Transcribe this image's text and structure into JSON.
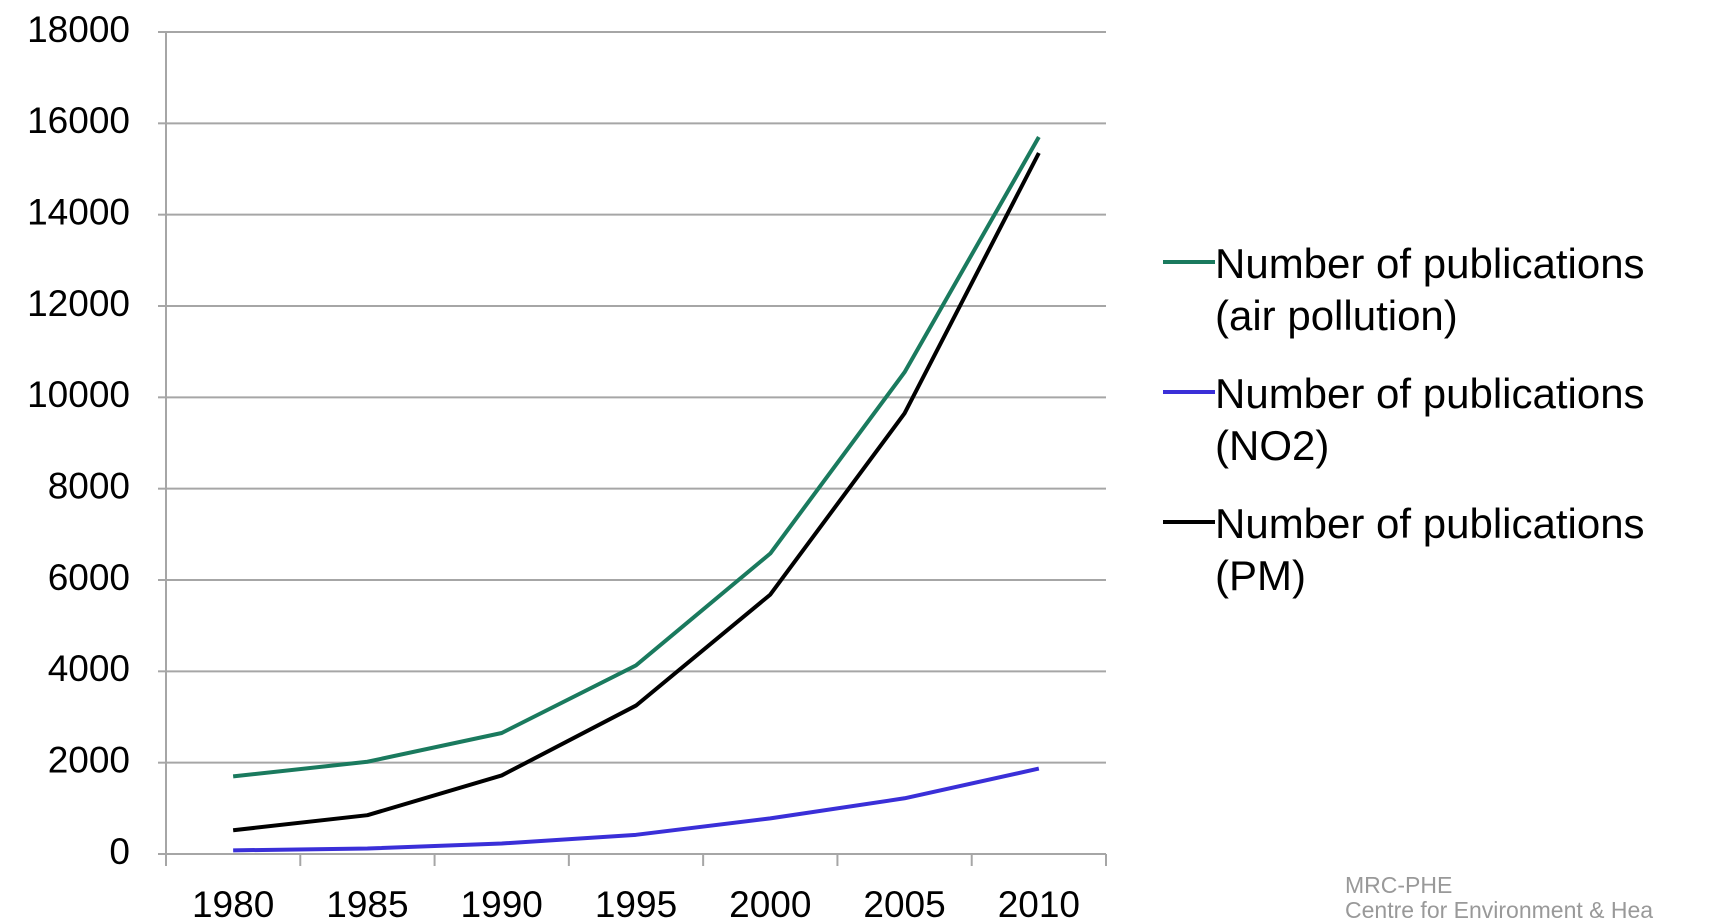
{
  "chart_data": {
    "type": "line",
    "categories": [
      "1980",
      "1985",
      "1990",
      "1995",
      "2000",
      "2005",
      "2010"
    ],
    "series": [
      {
        "name": "Number of publications (air pollution)",
        "color": "#1a7a5e",
        "values": [
          1700,
          2020,
          2650,
          4130,
          6580,
          10550,
          15700
        ]
      },
      {
        "name": "Number of publications (NO2)",
        "color": "#3a2fd8",
        "values": [
          80,
          120,
          230,
          420,
          780,
          1220,
          1870
        ]
      },
      {
        "name": "Number of publications (PM)",
        "color": "#000000",
        "values": [
          520,
          850,
          1720,
          3250,
          5680,
          9650,
          15350
        ]
      }
    ],
    "ylim": [
      0,
      18000
    ],
    "yticks": [
      0,
      2000,
      4000,
      6000,
      8000,
      10000,
      12000,
      14000,
      16000,
      18000
    ],
    "grid": true,
    "legend": "right"
  },
  "footer": {
    "line1": "MRC-PHE",
    "line2": "Centre for Environment & Hea"
  }
}
